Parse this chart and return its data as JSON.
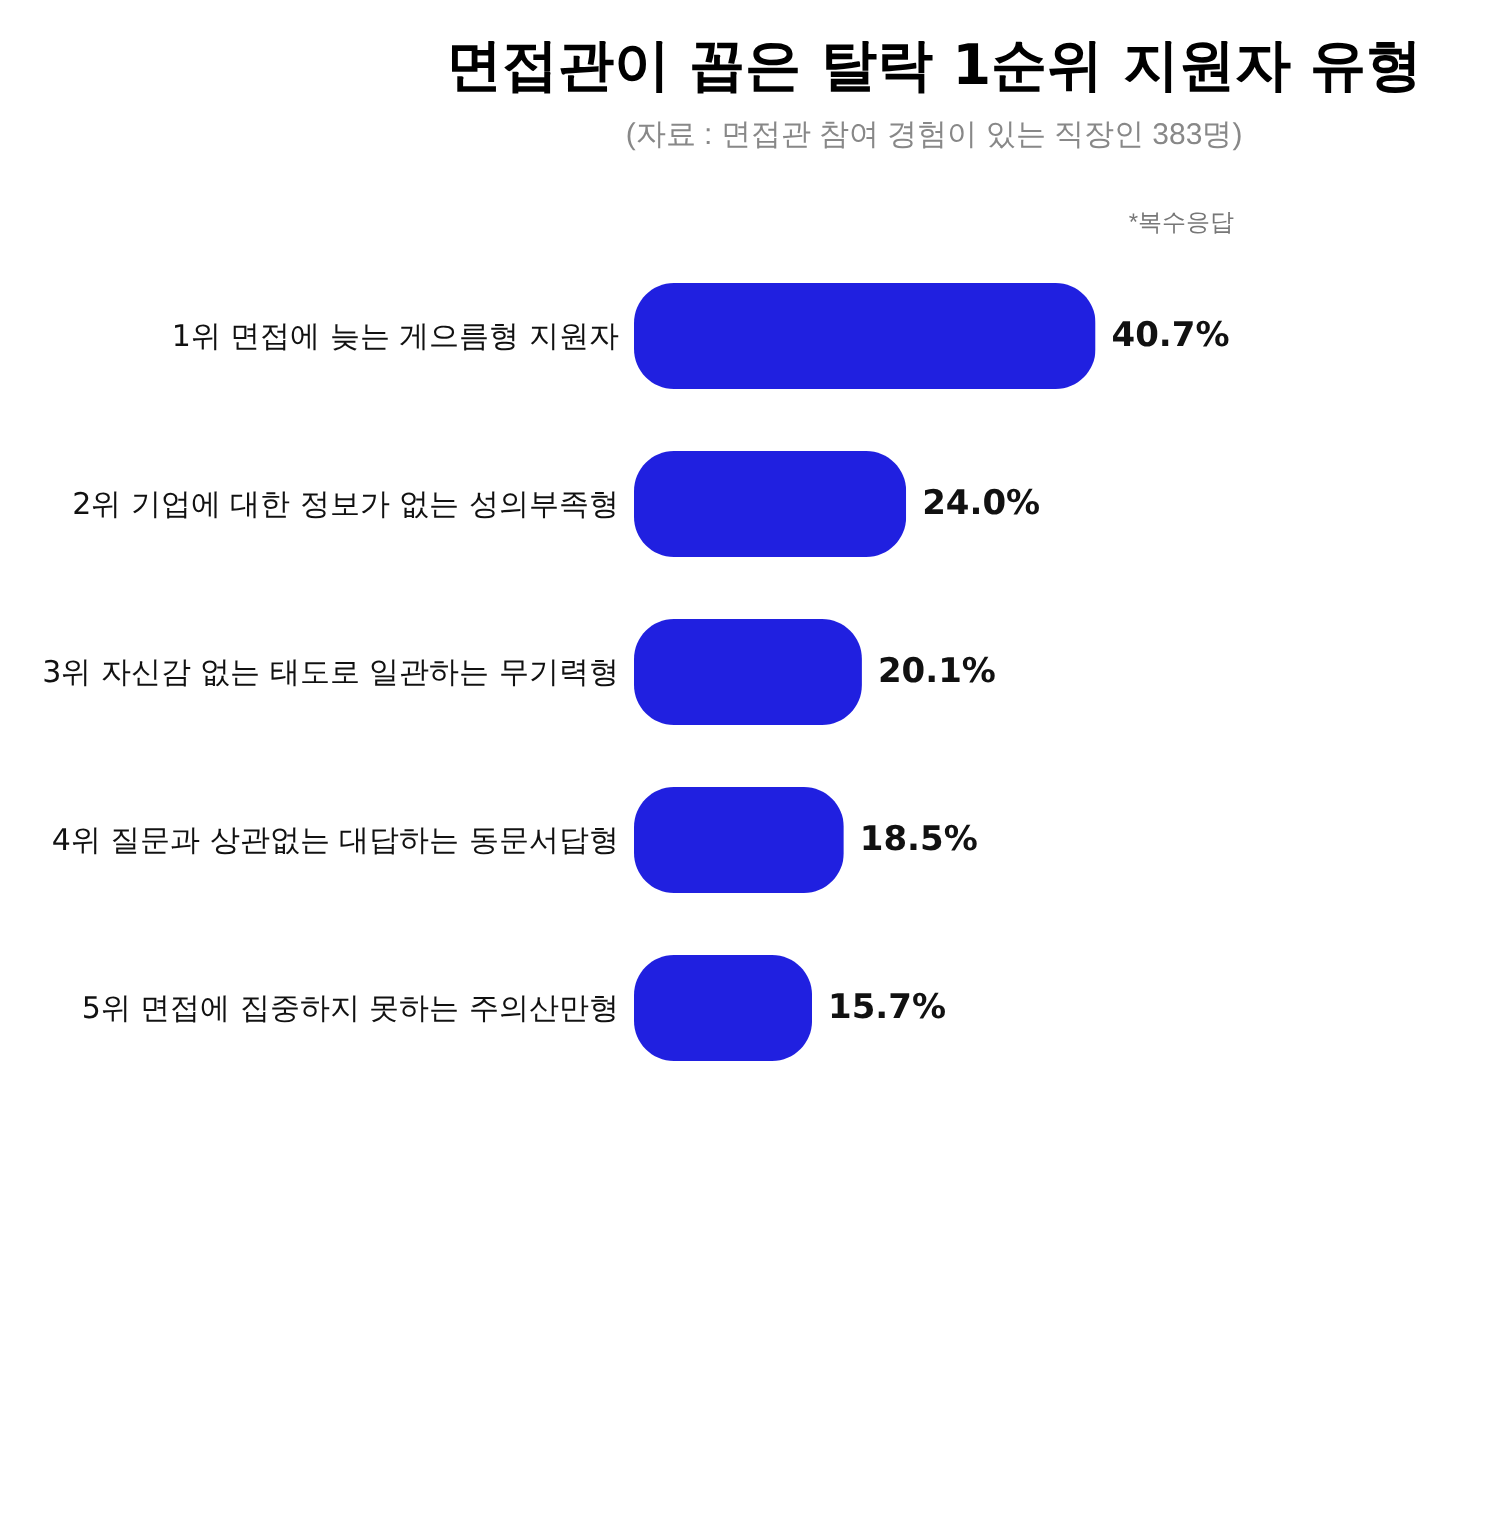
{
  "chart_data": {
    "type": "bar",
    "orientation": "horizontal",
    "title": "면접관이 꼽은 탈락 1순위 지원자 유형",
    "subtitle": "(자료 : 면접관 참여 경험이 있는 직장인 383명)",
    "categories": [
      "1위 면접에 늦는 게으름형 지원자",
      "2위 기업에 대한 정보가 없는 성의부족형",
      "3위 자신감 없는 태도로 일관하는 무기력형",
      "4위 질문과 상관없는 대답하는 동문서답형",
      "5위 면접에 집중하지 못하는 주의산만형"
    ],
    "values": [
      40.7,
      24.0,
      20.1,
      18.5,
      15.7
    ],
    "value_labels": [
      "40.7%",
      "24.0%",
      "20.1%",
      "18.5%",
      "15.7%"
    ],
    "color": "#2020e0",
    "annotations": [
      "*복수응답"
    ]
  }
}
